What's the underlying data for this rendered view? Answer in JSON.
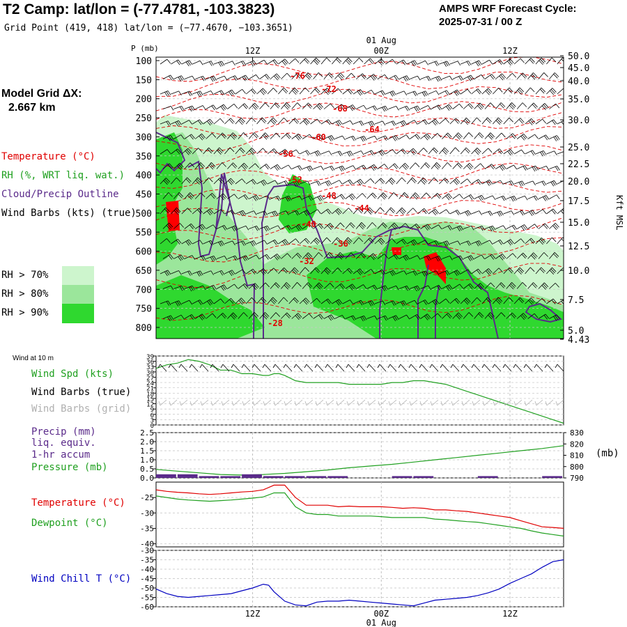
{
  "header": {
    "title": "T2 Camp:  lat/lon = (-77.4781, -103.3823)",
    "subtitle": "Grid Point (419, 418) lat/lon = (−77.4670, −103.3651)",
    "cycle_line1": "AMPS WRF Forecast Cycle:",
    "cycle_line2": "2025-07-31 / 00  Z"
  },
  "model_grid": {
    "line1": "Model Grid ΔX:",
    "line2": "2.667 km"
  },
  "cross_section_legend": [
    {
      "label": "Temperature (°C)",
      "color": "#e00000"
    },
    {
      "label": "RH (%, WRT liq. wat.)",
      "color": "#20a020"
    },
    {
      "label": "Cloud/Precip Outline",
      "color": "#5a2a8a"
    },
    {
      "label": "Wind Barbs (kts) (true)",
      "color": "#000000"
    }
  ],
  "rh_legend": [
    {
      "label": "RH > 70%",
      "color": "#cdf5cd"
    },
    {
      "label": "RH > 80%",
      "color": "#9be69b"
    },
    {
      "label": "RH > 90%",
      "color": "#2fd82f"
    }
  ],
  "time_axis": {
    "top_labels": [
      "12Z",
      "00Z",
      "12Z"
    ],
    "date_label": "01 Aug",
    "bottom_labels": [
      "12Z",
      "00Z",
      "12Z"
    ]
  },
  "chart_data": [
    {
      "type": "heatmap",
      "name": "cross-section",
      "ylabel": "P (mb)",
      "y_ticks": [
        100,
        150,
        200,
        250,
        300,
        350,
        400,
        450,
        500,
        550,
        600,
        650,
        700,
        750,
        800
      ],
      "right_label": "Kft MSL",
      "right_ticks": [
        "50.0",
        "45.0",
        "40.0",
        "35.0",
        "30.0",
        "25.0",
        "22.5",
        "20.0",
        "17.5",
        "15.0",
        "12.5",
        "10.0",
        "7.5",
        "5.0",
        "4.43"
      ],
      "temperature_labels": [
        "-76",
        "-72",
        "-68",
        "-64",
        "-60",
        "-56",
        "-52",
        "-48",
        "-44",
        "-40",
        "-36",
        "-32",
        "-28"
      ],
      "colors": {
        "temperature": "#e00000",
        "rh70": "#cdf5cd",
        "rh80": "#9be69b",
        "rh90": "#2fd82f",
        "cloud": "#5a2a8a",
        "ice": "#ff0000"
      }
    },
    {
      "type": "line",
      "name": "wind-10m",
      "title": "Wind at 10 m",
      "labels": [
        "Wind Spd (kts)",
        "Wind Barbs (true)",
        "Wind Barbs (grid)"
      ],
      "label_colors": [
        "#20a020",
        "#000000",
        "#b0b0b0"
      ],
      "y_ticks": [
        39,
        36,
        33,
        30,
        27,
        24,
        21,
        18,
        15,
        12,
        9,
        6,
        3,
        0
      ],
      "ylim": [
        0,
        39
      ],
      "x": [
        0,
        4,
        8,
        12,
        16,
        20,
        24,
        28,
        32,
        36,
        40,
        42,
        44,
        46,
        48,
        52,
        56,
        60,
        64,
        68,
        72,
        76,
        80,
        84,
        88,
        92,
        96,
        100,
        104,
        108,
        112,
        116,
        120,
        124,
        128,
        132,
        136,
        140,
        144,
        148,
        152
      ],
      "series": [
        {
          "name": "Wind Spd (kts)",
          "values": [
            32,
            34,
            35,
            37,
            36,
            34,
            31,
            31,
            29,
            29,
            28,
            28,
            29,
            29,
            28,
            25,
            24,
            24,
            24,
            24,
            23,
            23,
            23,
            23,
            24,
            24,
            25,
            25,
            24,
            23,
            21,
            19,
            17,
            15,
            13,
            11,
            9,
            7,
            5,
            3,
            1
          ]
        }
      ]
    },
    {
      "type": "line",
      "name": "precip-pressure",
      "labels": [
        "Precip (mm)",
        "liq. equiv.",
        "1-hr accum",
        "Pressure (mb)"
      ],
      "label_colors": [
        "#5a2a8a",
        "#5a2a8a",
        "#5a2a8a",
        "#20a020"
      ],
      "y_ticks": [
        "2.5",
        "2.0",
        "1.5",
        "1.0",
        "0.5",
        "0.0"
      ],
      "ylim": [
        0,
        2.5
      ],
      "right_ticks": [
        830,
        820,
        810,
        800,
        790
      ],
      "right_label": "(mb)",
      "right_lim": [
        790,
        830
      ],
      "x": [
        0,
        8,
        16,
        24,
        32,
        40,
        48,
        56,
        64,
        72,
        80,
        88,
        96,
        104,
        112,
        120,
        128,
        136,
        144,
        152
      ],
      "series": [
        {
          "name": "Pressure (mb)",
          "values": [
            797.5,
            796,
            794.5,
            793,
            792.5,
            793,
            794,
            795.5,
            797,
            799,
            800.5,
            802,
            804,
            806,
            808,
            810,
            812,
            814,
            816,
            818.5
          ]
        }
      ],
      "precip": [
        0.2,
        0.2,
        0.1,
        0.1,
        0.2,
        0.1,
        0.1,
        0.1,
        0.1,
        0,
        0,
        0.1,
        0.1,
        0,
        0,
        0.1,
        0,
        0,
        0.1,
        0
      ]
    },
    {
      "type": "line",
      "name": "temperature-dewpoint",
      "labels": [
        "Temperature (°C)",
        "Dewpoint (°C)"
      ],
      "label_colors": [
        "#e00000",
        "#20a020"
      ],
      "y_ticks": [
        -25,
        -30,
        -35,
        -40
      ],
      "ylim": [
        -41,
        -20
      ],
      "x": [
        0,
        4,
        8,
        12,
        16,
        20,
        24,
        28,
        32,
        36,
        40,
        44,
        48,
        52,
        56,
        60,
        64,
        68,
        72,
        76,
        80,
        84,
        88,
        92,
        96,
        100,
        104,
        108,
        112,
        116,
        120,
        124,
        128,
        132,
        136,
        140,
        144,
        148,
        152
      ],
      "series": [
        {
          "name": "Temperature (°C)",
          "values": [
            -22.5,
            -23,
            -23.3,
            -23.5,
            -23.8,
            -24,
            -23.8,
            -23.5,
            -23.2,
            -23,
            -22.5,
            -21,
            -21,
            -25,
            -27.5,
            -27.5,
            -27.5,
            -28,
            -27.8,
            -28,
            -28,
            -28,
            -28.2,
            -28.5,
            -28.3,
            -28.5,
            -29,
            -29,
            -29.3,
            -29.5,
            -30,
            -30.5,
            -31,
            -31.5,
            -32.5,
            -33.5,
            -34.5,
            -34.7,
            -35
          ]
        },
        {
          "name": "Dewpoint (°C)",
          "values": [
            -24.5,
            -25,
            -25.5,
            -25.8,
            -26,
            -26.2,
            -26,
            -25.8,
            -25.5,
            -25.2,
            -24.8,
            -23.5,
            -23.5,
            -28,
            -30,
            -30.5,
            -30.5,
            -31,
            -31,
            -31,
            -31,
            -31.2,
            -31.5,
            -31.5,
            -31.5,
            -31.5,
            -32,
            -32.2,
            -32.5,
            -32.8,
            -33,
            -33.5,
            -34,
            -34.5,
            -35,
            -35.8,
            -36.5,
            -37,
            -37.5
          ]
        }
      ]
    },
    {
      "type": "line",
      "name": "wind-chill",
      "labels": [
        "Wind Chill T (°C)"
      ],
      "label_colors": [
        "#0000c0"
      ],
      "y_ticks": [
        -30,
        -35,
        -40,
        -45,
        -50,
        -55,
        -60
      ],
      "ylim": [
        -60,
        -30
      ],
      "x": [
        0,
        4,
        8,
        12,
        16,
        20,
        24,
        28,
        32,
        36,
        40,
        42,
        44,
        48,
        52,
        56,
        60,
        64,
        68,
        72,
        76,
        80,
        84,
        88,
        92,
        96,
        100,
        104,
        108,
        112,
        116,
        120,
        124,
        128,
        132,
        136,
        140,
        144,
        148,
        152
      ],
      "series": [
        {
          "name": "Wind Chill T (°C)",
          "values": [
            -50.5,
            -53,
            -54.5,
            -55,
            -54.5,
            -54,
            -53.5,
            -53,
            -51.5,
            -50,
            -48,
            -48.5,
            -52,
            -57,
            -59,
            -59.5,
            -57.5,
            -57,
            -57,
            -56.5,
            -57,
            -57.5,
            -58,
            -58.5,
            -59,
            -59.5,
            -58,
            -56.5,
            -56,
            -55.5,
            -55,
            -54,
            -52.5,
            -50.5,
            -47.5,
            -45,
            -42.5,
            -39,
            -36,
            -35
          ]
        }
      ]
    }
  ]
}
